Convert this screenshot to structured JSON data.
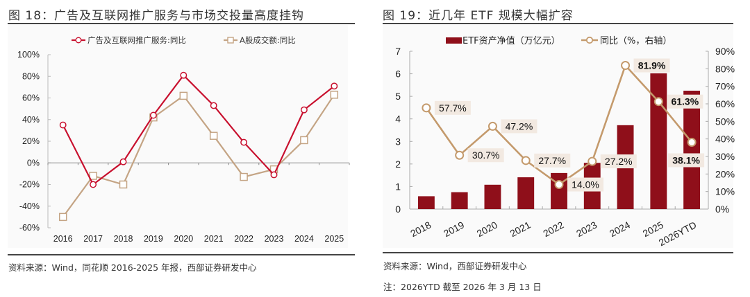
{
  "figures": [
    {
      "title": "图 18：广告及互联网推广服务与市场交投量高度挂钩",
      "source": "资料来源：Wind，同花顺 2016-2025 年报，西部证券研发中心"
    },
    {
      "title": "图 19：近几年 ETF 规模大幅扩容",
      "source": "资料来源：Wind，西部证券研发中心",
      "note": "注：2026YTD 截至 2026 年 3 月 13 日"
    }
  ],
  "chart_data": [
    {
      "type": "line",
      "title": "广告及互联网推广服务与市场交投量高度挂钩",
      "categories": [
        "2016",
        "2017",
        "2018",
        "2019",
        "2020",
        "2021",
        "2022",
        "2023",
        "2024",
        "2025"
      ],
      "series": [
        {
          "name": "广告及互联网推广服务:同比",
          "color": "#c8102e",
          "marker": "circle",
          "values": [
            35,
            -20,
            1,
            44,
            81,
            53,
            19,
            -11,
            49,
            71
          ]
        },
        {
          "name": "A股成交额:同比",
          "color": "#c4a484",
          "marker": "square",
          "values": [
            -50,
            -12,
            -20,
            42,
            62,
            25,
            -13,
            -6,
            21,
            63
          ]
        }
      ],
      "ylim": [
        -60,
        100
      ],
      "yticks": [
        100,
        80,
        60,
        40,
        20,
        0,
        -20,
        -40,
        -60
      ],
      "ytick_labels": [
        "100%",
        "80%",
        "60%",
        "40%",
        "20%",
        "0%",
        "-20%",
        "-40%",
        "-60%"
      ],
      "ylabel_unit": "%",
      "legend": "top-center",
      "grid": false
    },
    {
      "type": "bar",
      "title": "近几年 ETF 规模大幅扩容",
      "categories": [
        "2018",
        "2019",
        "2020",
        "2021",
        "2022",
        "2023",
        "2024",
        "2025",
        "2026YTD"
      ],
      "series": [
        {
          "name": "ETF资产净值（万亿元）",
          "type": "bar",
          "axis": "left",
          "color": "#8f0f1a",
          "values": [
            0.57,
            0.75,
            1.08,
            1.41,
            1.6,
            2.05,
            3.72,
            6.02,
            5.25
          ]
        },
        {
          "name": "同比（%，右轴）",
          "type": "line",
          "axis": "right",
          "color": "#c49a6c",
          "marker": "circle",
          "values": [
            57.7,
            30.7,
            47.2,
            27.7,
            14.0,
            27.2,
            81.9,
            61.3,
            38.1
          ],
          "labels": [
            "57.7%",
            "30.7%",
            "47.2%",
            "27.7%",
            "14.0%",
            "27.2%",
            "81.9%",
            "61.3%",
            "38.1%"
          ],
          "bold_labels": [
            false,
            false,
            false,
            false,
            false,
            false,
            true,
            true,
            true
          ]
        }
      ],
      "ylim_left": [
        0,
        7
      ],
      "yticks_left": [
        "0",
        "1",
        "2",
        "3",
        "4",
        "5",
        "6",
        "7"
      ],
      "ylim_right": [
        0,
        90
      ],
      "yticks_right": [
        "0%",
        "10%",
        "20%",
        "30%",
        "40%",
        "50%",
        "60%",
        "70%",
        "80%",
        "90%"
      ],
      "legend": "top-center",
      "grid": false
    }
  ]
}
